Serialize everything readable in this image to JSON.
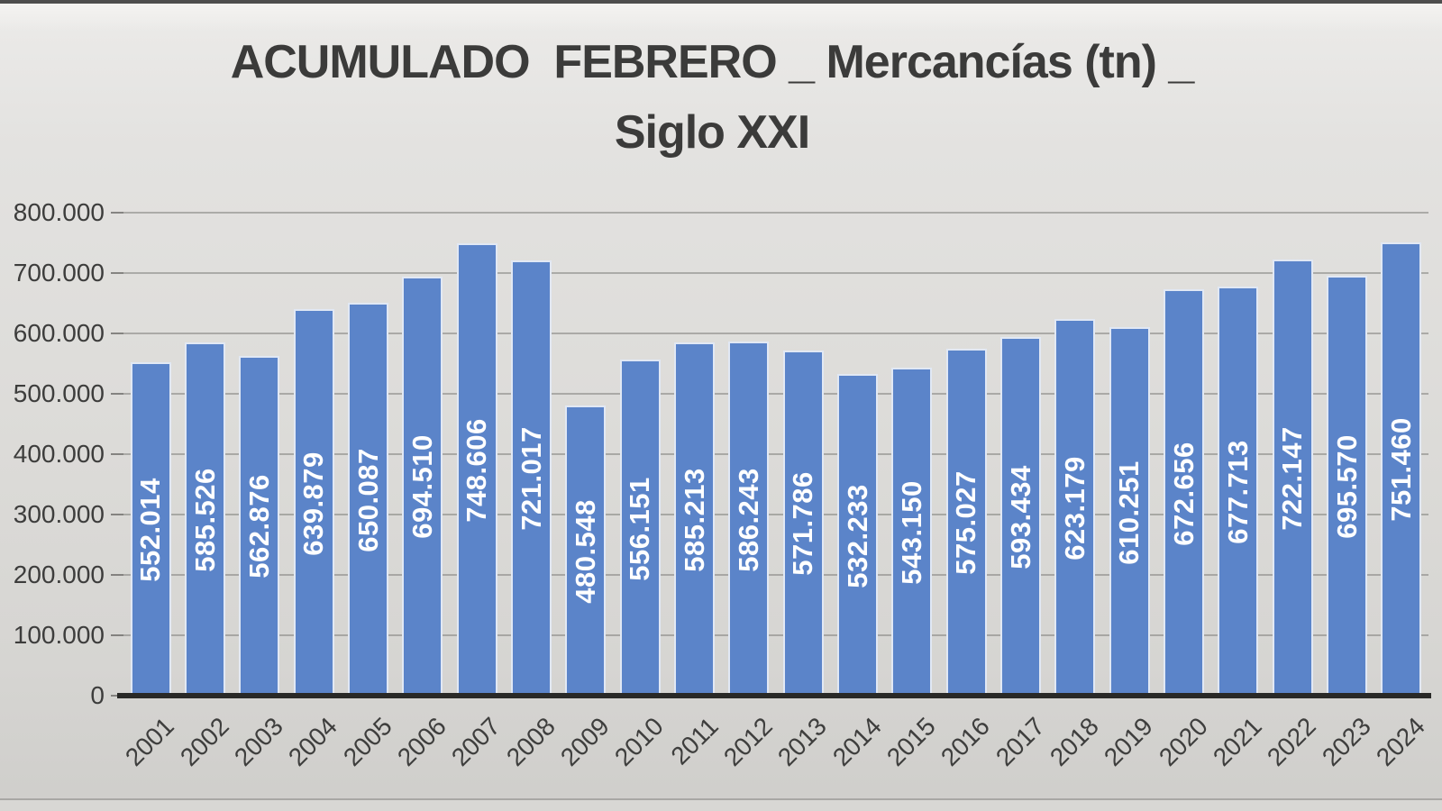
{
  "title": {
    "line1": "ACUMULADO  FEBRERO _ Mercancías (tn) _",
    "line2": "Siglo XXI"
  },
  "chart_data": {
    "type": "bar",
    "title": "ACUMULADO  FEBRERO _ Mercancías (tn) _ Siglo XXI",
    "xlabel": "",
    "ylabel": "",
    "categories": [
      "2001",
      "2002",
      "2003",
      "2004",
      "2005",
      "2006",
      "2007",
      "2008",
      "2009",
      "2010",
      "2011",
      "2012",
      "2013",
      "2014",
      "2015",
      "2016",
      "2017",
      "2018",
      "2019",
      "2020",
      "2021",
      "2022",
      "2023",
      "2024"
    ],
    "values": [
      552014,
      585526,
      562876,
      639879,
      650087,
      694510,
      748606,
      721017,
      480548,
      556151,
      585213,
      586243,
      571786,
      532233,
      543150,
      575027,
      593434,
      623179,
      610251,
      672656,
      677713,
      722147,
      695570,
      751460
    ],
    "value_labels": [
      "552.014",
      "585.526",
      "562.876",
      "639.879",
      "650.087",
      "694.510",
      "748.606",
      "721.017",
      "480.548",
      "556.151",
      "585.213",
      "586.243",
      "571.786",
      "532.233",
      "543.150",
      "575.027",
      "593.434",
      "623.179",
      "610.251",
      "672.656",
      "677.713",
      "722.147",
      "695.570",
      "751.460"
    ],
    "ylim": [
      0,
      800000
    ],
    "ytick_step": 100000,
    "ytick_labels": [
      "0",
      "100.000",
      "200.000",
      "300.000",
      "400.000",
      "500.000",
      "600.000",
      "700.000",
      "800.000"
    ],
    "grid": true,
    "legend": false,
    "bar_color": "#5b84c9",
    "bar_label_color": "#ffffff",
    "axis_color": "#292927",
    "gridline_color": "#807f7c",
    "text_color": "#3b3b3a"
  }
}
